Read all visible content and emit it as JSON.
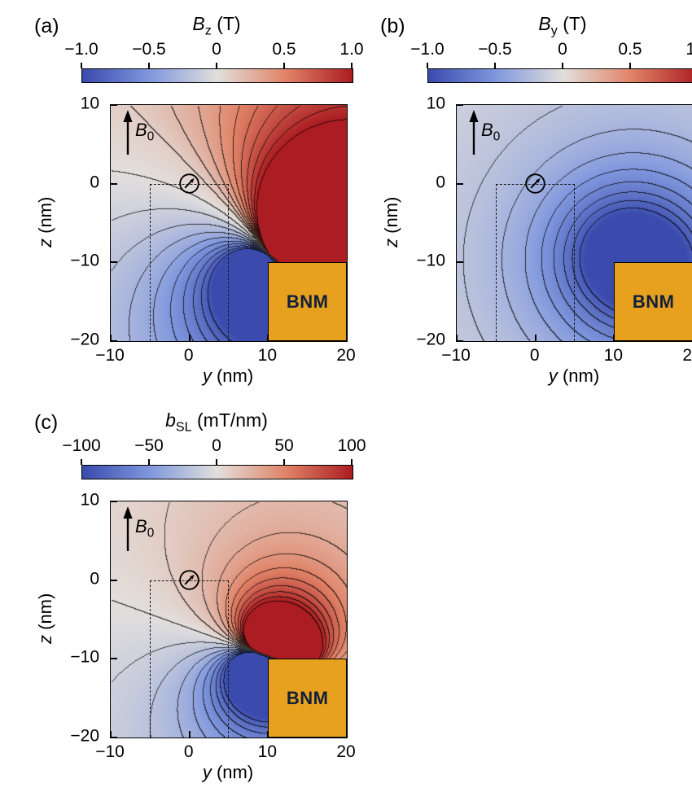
{
  "figure": {
    "background": "#ffffff"
  },
  "colormap": {
    "stops": [
      {
        "v": -1.0,
        "c": "#3a4aad"
      },
      {
        "v": -0.5,
        "c": "#7f97dd"
      },
      {
        "v": 0.0,
        "c": "#e2dfdc"
      },
      {
        "v": 0.5,
        "c": "#e08468"
      },
      {
        "v": 1.0,
        "c": "#ab1d22"
      }
    ]
  },
  "bnm_color": "#e8a11f",
  "panels": [
    {
      "label": "(a)",
      "title": {
        "var": "B",
        "sub": "z",
        "unit": " (T)"
      },
      "colorbar_ticks": [
        "−1.0",
        "−0.5",
        "0",
        "0.5",
        "1.0"
      ],
      "b0": {
        "var": "B",
        "sub": "0"
      },
      "bnm_label": "BNM",
      "x_axis": {
        "var": "y",
        "rest": " (nm)",
        "tick_labels": [
          "−10",
          "0",
          "10",
          "20"
        ]
      },
      "y_axis": {
        "var": "z",
        "rest": " (nm)",
        "tick_labels": [
          "10",
          "0",
          "−10",
          "−20"
        ]
      }
    },
    {
      "label": "(b)",
      "title": {
        "var": "B",
        "sub": "y",
        "unit": " (T)"
      },
      "colorbar_ticks": [
        "−1.0",
        "−0.5",
        "0",
        "0.5",
        "1.0"
      ],
      "b0": {
        "var": "B",
        "sub": "0"
      },
      "bnm_label": "BNM",
      "x_axis": {
        "var": "y",
        "rest": " (nm)",
        "tick_labels": [
          "−10",
          "0",
          "10",
          "20"
        ]
      },
      "y_axis": {
        "var": "z",
        "rest": " (nm)",
        "tick_labels": [
          "10",
          "0",
          "−10",
          "−20"
        ]
      }
    },
    {
      "label": "(c)",
      "title": {
        "var": "b",
        "sub": "SL",
        "unit": " (mT/nm)"
      },
      "colorbar_ticks": [
        "−100",
        "−50",
        "0",
        "50",
        "100"
      ],
      "b0": {
        "var": "B",
        "sub": "0"
      },
      "bnm_label": "BNM",
      "x_axis": {
        "var": "y",
        "rest": " (nm)",
        "tick_labels": [
          "−10",
          "0",
          "10",
          "20"
        ]
      },
      "y_axis": {
        "var": "z",
        "rest": " (nm)",
        "tick_labels": [
          "10",
          "0",
          "−10",
          "−20"
        ]
      }
    }
  ],
  "chart_data": [
    {
      "panel": "a",
      "type": "heatmap",
      "quantity": "Bz",
      "unit": "T",
      "x": {
        "label": "y (nm)",
        "range": [
          -10,
          20
        ],
        "ticks": [
          -10,
          0,
          10,
          20
        ]
      },
      "y": {
        "label": "z (nm)",
        "range": [
          -20,
          10
        ],
        "ticks": [
          10,
          0,
          -10,
          -20
        ]
      },
      "colorbar": {
        "range": [
          -1,
          1
        ],
        "ticks": [
          -1.0,
          -0.5,
          0,
          0.5,
          1.0
        ]
      },
      "contour_interval": 0.1,
      "features": {
        "bnm_block": {
          "y": [
            10,
            20
          ],
          "z": [
            -20,
            -10
          ]
        },
        "dashed_box": {
          "y": [
            -5,
            5
          ],
          "z": [
            -20,
            0
          ]
        },
        "spin_marker_at": {
          "y": 0,
          "z": 0
        },
        "b0_arrow_direction": "+z"
      },
      "pattern": "Dipolar-lobe field emanating from the BNM block corner at (10,-10): saturated positive lobe (≥ +1 T, dark red) toward upper right above the block, negative lobe (≈ −0.3 to −0.8 T, blue) toward lower left, near-zero whitish band running from the corner toward the upper-left; thin black contours every 0.1 T fan out from the corner.",
      "model": {
        "kind": "lobe",
        "angle_deg": 45,
        "falloff": 1.4,
        "rmin": 1.5,
        "neg_scale": 0.5,
        "offset": 0.1,
        "sources": [
          {
            "y": 11,
            "z": -10,
            "A": 30
          },
          {
            "y": 16,
            "z": -12,
            "A": 40
          }
        ]
      }
    },
    {
      "panel": "b",
      "type": "heatmap",
      "quantity": "By",
      "unit": "T",
      "x": {
        "label": "y (nm)",
        "range": [
          -10,
          20
        ],
        "ticks": [
          -10,
          0,
          10,
          20
        ]
      },
      "y": {
        "label": "z (nm)",
        "range": [
          -20,
          10
        ],
        "ticks": [
          10,
          0,
          -10,
          -20
        ]
      },
      "colorbar": {
        "range": [
          -1,
          1
        ],
        "ticks": [
          -1.0,
          -0.5,
          0,
          0.5,
          1.0
        ]
      },
      "contour_interval": 0.1,
      "features": {
        "bnm_block": {
          "y": [
            10,
            20
          ],
          "z": [
            -20,
            -10
          ]
        },
        "dashed_box": {
          "y": [
            -5,
            5
          ],
          "z": [
            -20,
            0
          ]
        },
        "spin_marker_at": {
          "y": 0,
          "z": 0
        },
        "b0_arrow_direction": "+z"
      },
      "pattern": "By is negative everywhere in view: concentric oval contours (every 0.1 T) centered near the BNM corner around (11,-9); saturated dark blue (≤ −1 T) core near the block, fading to ≈ −0.1 T pale blue at the upper-left.",
      "model": {
        "kind": "well",
        "r0": 7,
        "p": 0.9,
        "neg_scale": 1,
        "offset": 0,
        "sources": [
          {
            "y": 11,
            "z": -9,
            "A": 0.9
          },
          {
            "y": 15,
            "z": -11,
            "A": 0.8
          }
        ]
      }
    },
    {
      "panel": "c",
      "type": "heatmap",
      "quantity": "bSL",
      "unit": "mT/nm",
      "x": {
        "label": "y (nm)",
        "range": [
          -10,
          20
        ],
        "ticks": [
          -10,
          0,
          10,
          20
        ]
      },
      "y": {
        "label": "z (nm)",
        "range": [
          -20,
          10
        ],
        "ticks": [
          10,
          0,
          -10,
          -20
        ]
      },
      "colorbar": {
        "range": [
          -100,
          100
        ],
        "ticks": [
          -100,
          -50,
          0,
          50,
          100
        ]
      },
      "contour_interval": 10,
      "features": {
        "bnm_block": {
          "y": [
            10,
            20
          ],
          "z": [
            -20,
            -10
          ]
        },
        "dashed_box": {
          "y": [
            -5,
            5
          ],
          "z": [
            -20,
            0
          ]
        },
        "spin_marker_at": {
          "y": 0,
          "z": 0
        },
        "b0_arrow_direction": "+z"
      },
      "pattern": "Spin-lock gradient: saturated positive blob (≥ +100 mT/nm, dark red) just above the BNM corner near (8,-6), saturated negative blob (≤ −100 mT/nm, navy) just left of the corner near (7,-11) with crowded dark contours along z ≈ −9; light pink above, light blue below-left, contours every 10 mT/nm.",
      "model": {
        "kind": "lobe",
        "angle_deg": 20,
        "falloff": 1.6,
        "rmin": 1.2,
        "neg_scale": 1,
        "offset": 0,
        "sources": [
          {
            "y": 9.5,
            "z": -9.5,
            "A": 17
          },
          {
            "y": 13,
            "z": -11,
            "A": 10
          }
        ]
      }
    }
  ]
}
